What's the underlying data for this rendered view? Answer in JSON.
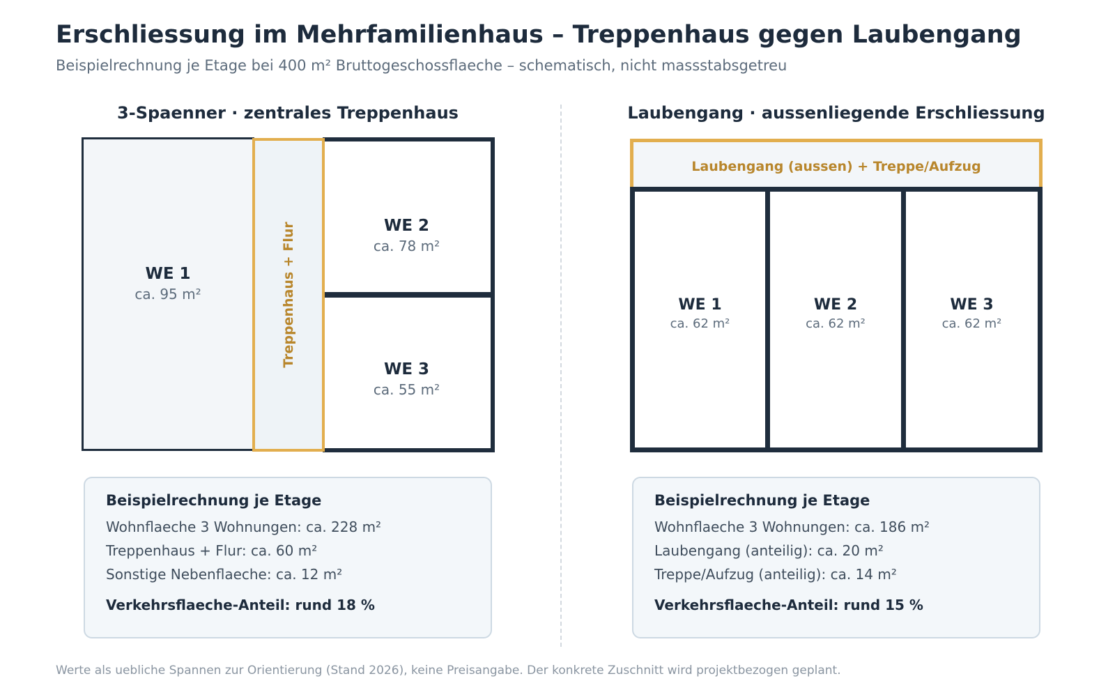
{
  "header": {
    "title": "Erschliessung im Mehrfamilienhaus – Treppenhaus gegen Laubengang",
    "subtitle": "Beispielrechnung je Etage bei 400 m² Bruttogeschossflaeche – schematisch, nicht massstabsgetreu"
  },
  "left": {
    "title": "3-Spaenner · zentrales Treppenhaus",
    "stair_label": "Treppenhaus + Flur",
    "units": [
      {
        "name": "WE 1",
        "area": "ca. 95 m²"
      },
      {
        "name": "WE 2",
        "area": "ca. 78 m²"
      },
      {
        "name": "WE 3",
        "area": "ca. 55 m²"
      }
    ],
    "calc": {
      "title": "Beispielrechnung je Etage",
      "lines": [
        "Wohnflaeche 3 Wohnungen: ca. 228 m²",
        "Treppenhaus + Flur: ca. 60 m²",
        "Sonstige Nebenflaeche: ca. 12 m²"
      ],
      "total": "Verkehrsflaeche-Anteil: rund 18 %"
    }
  },
  "right": {
    "title": "Laubengang · aussenliegende Erschliessung",
    "gallery_label": "Laubengang (aussen) + Treppe/Aufzug",
    "units": [
      {
        "name": "WE 1",
        "area": "ca. 62 m²"
      },
      {
        "name": "WE 2",
        "area": "ca. 62 m²"
      },
      {
        "name": "WE 3",
        "area": "ca. 62 m²"
      }
    ],
    "calc": {
      "title": "Beispielrechnung je Etage",
      "lines": [
        "Wohnflaeche 3 Wohnungen: ca. 186 m²",
        "Laubengang (anteilig): ca. 20 m²",
        "Treppe/Aufzug (anteilig): ca. 14 m²"
      ],
      "total": "Verkehrsflaeche-Anteil: rund 15 %"
    }
  },
  "footnote": "Werte als uebliche Spannen zur Orientierung (Stand 2026), keine Preisangabe. Der konkrete Zuschnitt wird projektbezogen geplant.",
  "colors": {
    "wall": "#1f2d3d",
    "accent": "#e2ae4e",
    "accent_text": "#b8862c",
    "fill_light": "#f3f6f9",
    "card_bg": "#f3f7fa"
  }
}
